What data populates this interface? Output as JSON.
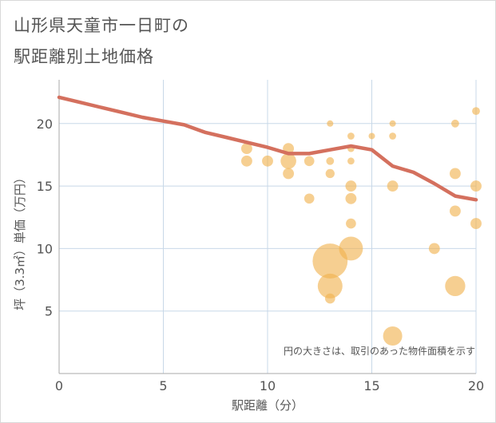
{
  "chart_data": {
    "type": "scatter",
    "title_lines": [
      "山形県天童市一日町の",
      "駅距離別土地価格"
    ],
    "xlabel": "駅距離（分）",
    "ylabel": "坪（3.3㎡）単価（万円）",
    "annotation": "円の大きさは、取引のあった物件面積を示す",
    "xlim": [
      0,
      20
    ],
    "ylim": [
      0,
      23.5
    ],
    "x_ticks": [
      0,
      5,
      10,
      15,
      20
    ],
    "y_ticks": [
      5,
      10,
      15,
      20
    ],
    "grid": true,
    "colors": {
      "line": "#d4705e",
      "bubble": "#f0b24e",
      "grid": "#c8d8e8",
      "axis_text": "#555555"
    },
    "series": [
      {
        "type": "line",
        "x": [
          0,
          1,
          2,
          3,
          4,
          5,
          6,
          7,
          8,
          9,
          10,
          11,
          12,
          13,
          14,
          15,
          16,
          17,
          18,
          19,
          20
        ],
        "y": [
          22.1,
          21.7,
          21.3,
          20.9,
          20.5,
          20.2,
          19.9,
          19.3,
          18.9,
          18.5,
          18.1,
          17.6,
          17.6,
          17.9,
          18.2,
          17.9,
          16.6,
          16.1,
          15.2,
          14.2,
          13.9
        ]
      },
      {
        "type": "bubble",
        "points": [
          {
            "x": 9,
            "y": 18,
            "size": 3
          },
          {
            "x": 9,
            "y": 17,
            "size": 3
          },
          {
            "x": 10,
            "y": 17,
            "size": 3
          },
          {
            "x": 11,
            "y": 18,
            "size": 3
          },
          {
            "x": 11,
            "y": 17,
            "size": 6
          },
          {
            "x": 11,
            "y": 16,
            "size": 3
          },
          {
            "x": 12,
            "y": 17,
            "size": 2.5
          },
          {
            "x": 12,
            "y": 14,
            "size": 2.5
          },
          {
            "x": 13,
            "y": 20,
            "size": 1
          },
          {
            "x": 13,
            "y": 17,
            "size": 1.5
          },
          {
            "x": 13,
            "y": 16,
            "size": 2
          },
          {
            "x": 13,
            "y": 9,
            "size": 30
          },
          {
            "x": 13,
            "y": 7,
            "size": 15
          },
          {
            "x": 13,
            "y": 6,
            "size": 2.5
          },
          {
            "x": 14,
            "y": 19,
            "size": 1.2
          },
          {
            "x": 14,
            "y": 18,
            "size": 1.2
          },
          {
            "x": 14,
            "y": 17,
            "size": 1.2
          },
          {
            "x": 14,
            "y": 15,
            "size": 3
          },
          {
            "x": 14,
            "y": 14,
            "size": 3
          },
          {
            "x": 14,
            "y": 12,
            "size": 2.5
          },
          {
            "x": 14,
            "y": 10,
            "size": 14
          },
          {
            "x": 15,
            "y": 19,
            "size": 1
          },
          {
            "x": 16,
            "y": 20,
            "size": 1
          },
          {
            "x": 16,
            "y": 19,
            "size": 1.2
          },
          {
            "x": 16,
            "y": 15,
            "size": 3
          },
          {
            "x": 16,
            "y": 3,
            "size": 9
          },
          {
            "x": 18,
            "y": 10,
            "size": 3
          },
          {
            "x": 19,
            "y": 20,
            "size": 1.5
          },
          {
            "x": 19,
            "y": 16,
            "size": 3
          },
          {
            "x": 19,
            "y": 13,
            "size": 3
          },
          {
            "x": 19,
            "y": 7,
            "size": 10
          },
          {
            "x": 20,
            "y": 21,
            "size": 1.5
          },
          {
            "x": 20,
            "y": 15,
            "size": 3
          },
          {
            "x": 20,
            "y": 12,
            "size": 3
          }
        ]
      }
    ]
  }
}
